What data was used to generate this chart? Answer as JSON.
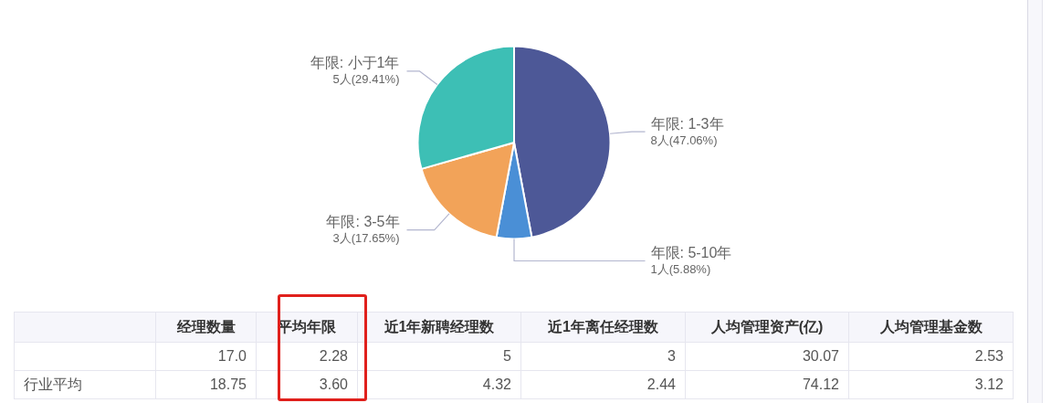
{
  "chart_data": [
    {
      "type": "pie",
      "categories": [
        "年限: 1-3年",
        "年限: 5-10年",
        "年限: 3-5年",
        "年限: 小于1年"
      ],
      "values": [
        8,
        1,
        3,
        5
      ],
      "value_labels": [
        "8人(47.06%)",
        "1人(5.88%)",
        "3人(17.65%)",
        "5人(29.41%)"
      ],
      "colors": [
        "#4d5897",
        "#4a8fd6",
        "#f2a359",
        "#3dbfb5"
      ]
    },
    {
      "type": "other",
      "categories": [
        "经理数量",
        "平均年限",
        "近1年新聘经理数",
        "近1年离任经理数",
        "人均管理资产(亿)",
        "人均管理基金数"
      ],
      "y_categories": [
        null,
        "行业平均"
      ],
      "cell_labels": [
        [
          "17.0",
          "2.28",
          "5",
          "3",
          "30.07",
          "2.53"
        ],
        [
          "18.75",
          "3.60",
          "4.32",
          "2.44",
          "74.12",
          "3.12"
        ]
      ]
    }
  ]
}
